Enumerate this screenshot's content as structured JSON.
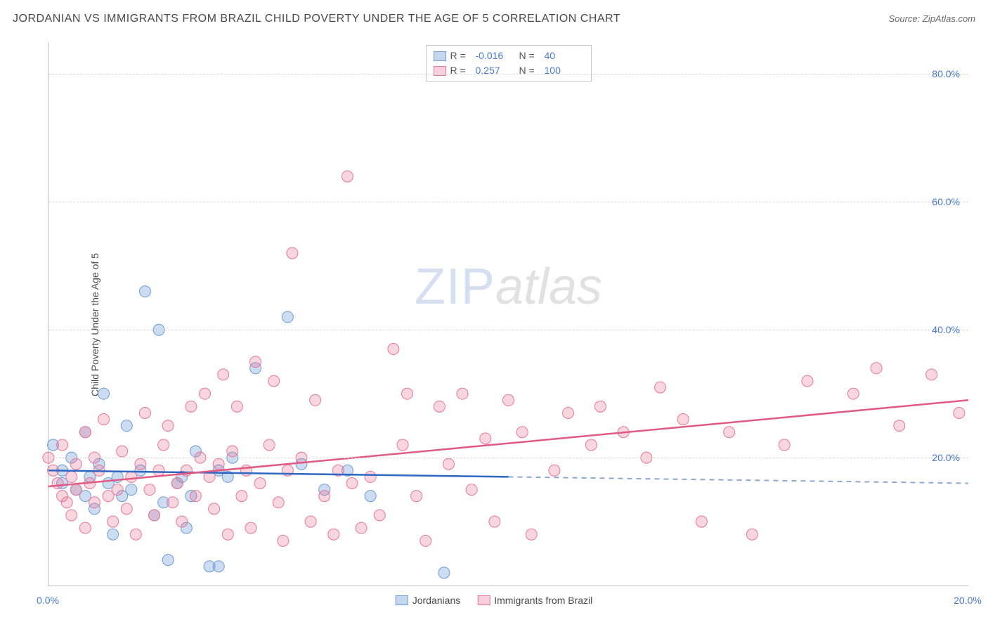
{
  "title": "JORDANIAN VS IMMIGRANTS FROM BRAZIL CHILD POVERTY UNDER THE AGE OF 5 CORRELATION CHART",
  "source_label": "Source: ZipAtlas.com",
  "y_axis_label": "Child Poverty Under the Age of 5",
  "watermark": {
    "a": "ZIP",
    "b": "atlas"
  },
  "chart": {
    "type": "scatter",
    "background_color": "#ffffff",
    "grid_color": "#d8d8d8",
    "axis_color": "#bdbdbd",
    "tick_color": "#4878d0",
    "tick_fontsize": 14,
    "xlim": [
      0,
      20
    ],
    "ylim": [
      0,
      85
    ],
    "x_ticks": [
      {
        "v": 0,
        "label": "0.0%"
      },
      {
        "v": 20,
        "label": "20.0%"
      }
    ],
    "y_ticks": [
      {
        "v": 20,
        "label": "20.0%"
      },
      {
        "v": 40,
        "label": "40.0%"
      },
      {
        "v": 60,
        "label": "60.0%"
      },
      {
        "v": 80,
        "label": "80.0%"
      }
    ],
    "series": [
      {
        "id": "jordanians",
        "label": "Jordanians",
        "marker_fill": "rgba(110,155,215,0.35)",
        "marker_stroke": "#6e9bd7",
        "swatch_fill": "#c5d6ee",
        "swatch_border": "#6e9bd7",
        "line_color": "#2e66c4",
        "line_dash_color": "#8fa9cf",
        "marker_r": 8,
        "R": "-0.016",
        "N": "40",
        "trend": {
          "x1": 0,
          "y1": 18.0,
          "x2": 10,
          "y2": 17.0,
          "x2_ext": 20,
          "y2_ext": 16.0
        },
        "points": [
          [
            0.1,
            22
          ],
          [
            0.3,
            16
          ],
          [
            0.3,
            18
          ],
          [
            0.5,
            20
          ],
          [
            0.6,
            15
          ],
          [
            0.8,
            14
          ],
          [
            0.8,
            24
          ],
          [
            0.9,
            17
          ],
          [
            1.0,
            12
          ],
          [
            1.1,
            19
          ],
          [
            1.2,
            30
          ],
          [
            1.3,
            16
          ],
          [
            1.4,
            8
          ],
          [
            1.5,
            17
          ],
          [
            1.6,
            14
          ],
          [
            1.7,
            25
          ],
          [
            1.8,
            15
          ],
          [
            2.0,
            18
          ],
          [
            2.1,
            46
          ],
          [
            2.3,
            11
          ],
          [
            2.4,
            40
          ],
          [
            2.5,
            13
          ],
          [
            2.6,
            4
          ],
          [
            2.8,
            16
          ],
          [
            2.9,
            17
          ],
          [
            3.0,
            9
          ],
          [
            3.1,
            14
          ],
          [
            3.2,
            21
          ],
          [
            3.5,
            3
          ],
          [
            3.7,
            3
          ],
          [
            3.7,
            18
          ],
          [
            3.9,
            17
          ],
          [
            4.0,
            20
          ],
          [
            4.5,
            34
          ],
          [
            5.2,
            42
          ],
          [
            5.5,
            19
          ],
          [
            6.0,
            15
          ],
          [
            6.5,
            18
          ],
          [
            7.0,
            14
          ],
          [
            8.6,
            2
          ]
        ]
      },
      {
        "id": "brazil",
        "label": "Immigrants from Brazil",
        "marker_fill": "rgba(232,120,150,0.30)",
        "marker_stroke": "#e87896",
        "swatch_fill": "#f6d1db",
        "swatch_border": "#e87896",
        "line_color": "#e05a82",
        "marker_r": 8,
        "R": "0.257",
        "N": "100",
        "trend": {
          "x1": 0,
          "y1": 15.5,
          "x2": 20,
          "y2": 29.0
        },
        "points": [
          [
            0.0,
            20
          ],
          [
            0.1,
            18
          ],
          [
            0.2,
            16
          ],
          [
            0.3,
            14
          ],
          [
            0.3,
            22
          ],
          [
            0.4,
            13
          ],
          [
            0.5,
            17
          ],
          [
            0.5,
            11
          ],
          [
            0.6,
            19
          ],
          [
            0.6,
            15
          ],
          [
            0.8,
            24
          ],
          [
            0.8,
            9
          ],
          [
            0.9,
            16
          ],
          [
            1.0,
            13
          ],
          [
            1.0,
            20
          ],
          [
            1.1,
            18
          ],
          [
            1.2,
            26
          ],
          [
            1.3,
            14
          ],
          [
            1.4,
            10
          ],
          [
            1.5,
            15
          ],
          [
            1.6,
            21
          ],
          [
            1.7,
            12
          ],
          [
            1.8,
            17
          ],
          [
            1.9,
            8
          ],
          [
            2.0,
            19
          ],
          [
            2.1,
            27
          ],
          [
            2.2,
            15
          ],
          [
            2.3,
            11
          ],
          [
            2.4,
            18
          ],
          [
            2.5,
            22
          ],
          [
            2.6,
            25
          ],
          [
            2.7,
            13
          ],
          [
            2.8,
            16
          ],
          [
            2.9,
            10
          ],
          [
            3.0,
            18
          ],
          [
            3.1,
            28
          ],
          [
            3.2,
            14
          ],
          [
            3.3,
            20
          ],
          [
            3.4,
            30
          ],
          [
            3.5,
            17
          ],
          [
            3.6,
            12
          ],
          [
            3.7,
            19
          ],
          [
            3.8,
            33
          ],
          [
            3.9,
            8
          ],
          [
            4.0,
            21
          ],
          [
            4.1,
            28
          ],
          [
            4.2,
            14
          ],
          [
            4.3,
            18
          ],
          [
            4.4,
            9
          ],
          [
            4.5,
            35
          ],
          [
            4.6,
            16
          ],
          [
            4.8,
            22
          ],
          [
            4.9,
            32
          ],
          [
            5.0,
            13
          ],
          [
            5.1,
            7
          ],
          [
            5.2,
            18
          ],
          [
            5.3,
            52
          ],
          [
            5.5,
            20
          ],
          [
            5.7,
            10
          ],
          [
            5.8,
            29
          ],
          [
            6.0,
            14
          ],
          [
            6.2,
            8
          ],
          [
            6.3,
            18
          ],
          [
            6.5,
            64
          ],
          [
            6.6,
            16
          ],
          [
            6.8,
            9
          ],
          [
            7.0,
            17
          ],
          [
            7.2,
            11
          ],
          [
            7.5,
            37
          ],
          [
            7.7,
            22
          ],
          [
            7.8,
            30
          ],
          [
            8.0,
            14
          ],
          [
            8.2,
            7
          ],
          [
            8.5,
            28
          ],
          [
            8.7,
            19
          ],
          [
            9.0,
            30
          ],
          [
            9.2,
            15
          ],
          [
            9.5,
            23
          ],
          [
            9.7,
            10
          ],
          [
            10.0,
            29
          ],
          [
            10.3,
            24
          ],
          [
            10.5,
            8
          ],
          [
            11.0,
            18
          ],
          [
            11.3,
            27
          ],
          [
            11.8,
            22
          ],
          [
            12.0,
            28
          ],
          [
            12.5,
            24
          ],
          [
            13.0,
            20
          ],
          [
            13.3,
            31
          ],
          [
            13.8,
            26
          ],
          [
            14.2,
            10
          ],
          [
            14.8,
            24
          ],
          [
            15.3,
            8
          ],
          [
            16.0,
            22
          ],
          [
            16.5,
            32
          ],
          [
            17.5,
            30
          ],
          [
            18.0,
            34
          ],
          [
            18.5,
            25
          ],
          [
            19.2,
            33
          ],
          [
            19.8,
            27
          ]
        ]
      }
    ]
  },
  "legend_top": {
    "rows": [
      {
        "series": "jordanians",
        "r_label": "R =",
        "n_label": "N ="
      },
      {
        "series": "brazil",
        "r_label": "R =",
        "n_label": "N ="
      }
    ]
  }
}
